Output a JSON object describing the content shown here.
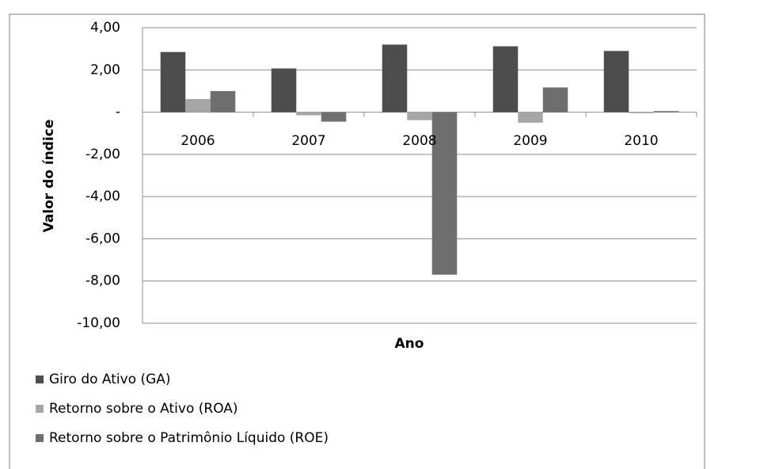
{
  "chart_data": {
    "type": "bar",
    "y_label": "Valor do índice",
    "x_label": "Ano",
    "categories": [
      "2006",
      "2007",
      "2008",
      "2009",
      "2010"
    ],
    "series": [
      {
        "name": "Giro do Ativo (GA)",
        "color": "#4d4d4d",
        "values": [
          2.85,
          2.07,
          3.2,
          3.12,
          2.9
        ]
      },
      {
        "name": "Retorno sobre o Ativo (ROA)",
        "color": "#a6a6a6",
        "values": [
          0.62,
          -0.15,
          -0.38,
          -0.5,
          -0.05
        ]
      },
      {
        "name": "Retorno sobre o Patrimônio Líquido (ROE)",
        "color": "#6e6e6e",
        "values": [
          1.0,
          -0.45,
          -7.7,
          1.17,
          0.05
        ]
      }
    ],
    "ylim": [
      -10,
      4
    ],
    "yticks": [
      {
        "value": 4,
        "label": "4,00"
      },
      {
        "value": 2,
        "label": "2,00"
      },
      {
        "value": 0,
        "label": "-"
      },
      {
        "value": -2,
        "label": "-2,00"
      },
      {
        "value": -4,
        "label": "-4,00"
      },
      {
        "value": -6,
        "label": "-6,00"
      },
      {
        "value": -8,
        "label": "-8,00"
      },
      {
        "value": -10,
        "label": "-10,00"
      }
    ],
    "grid": true,
    "legend": "bottom"
  }
}
